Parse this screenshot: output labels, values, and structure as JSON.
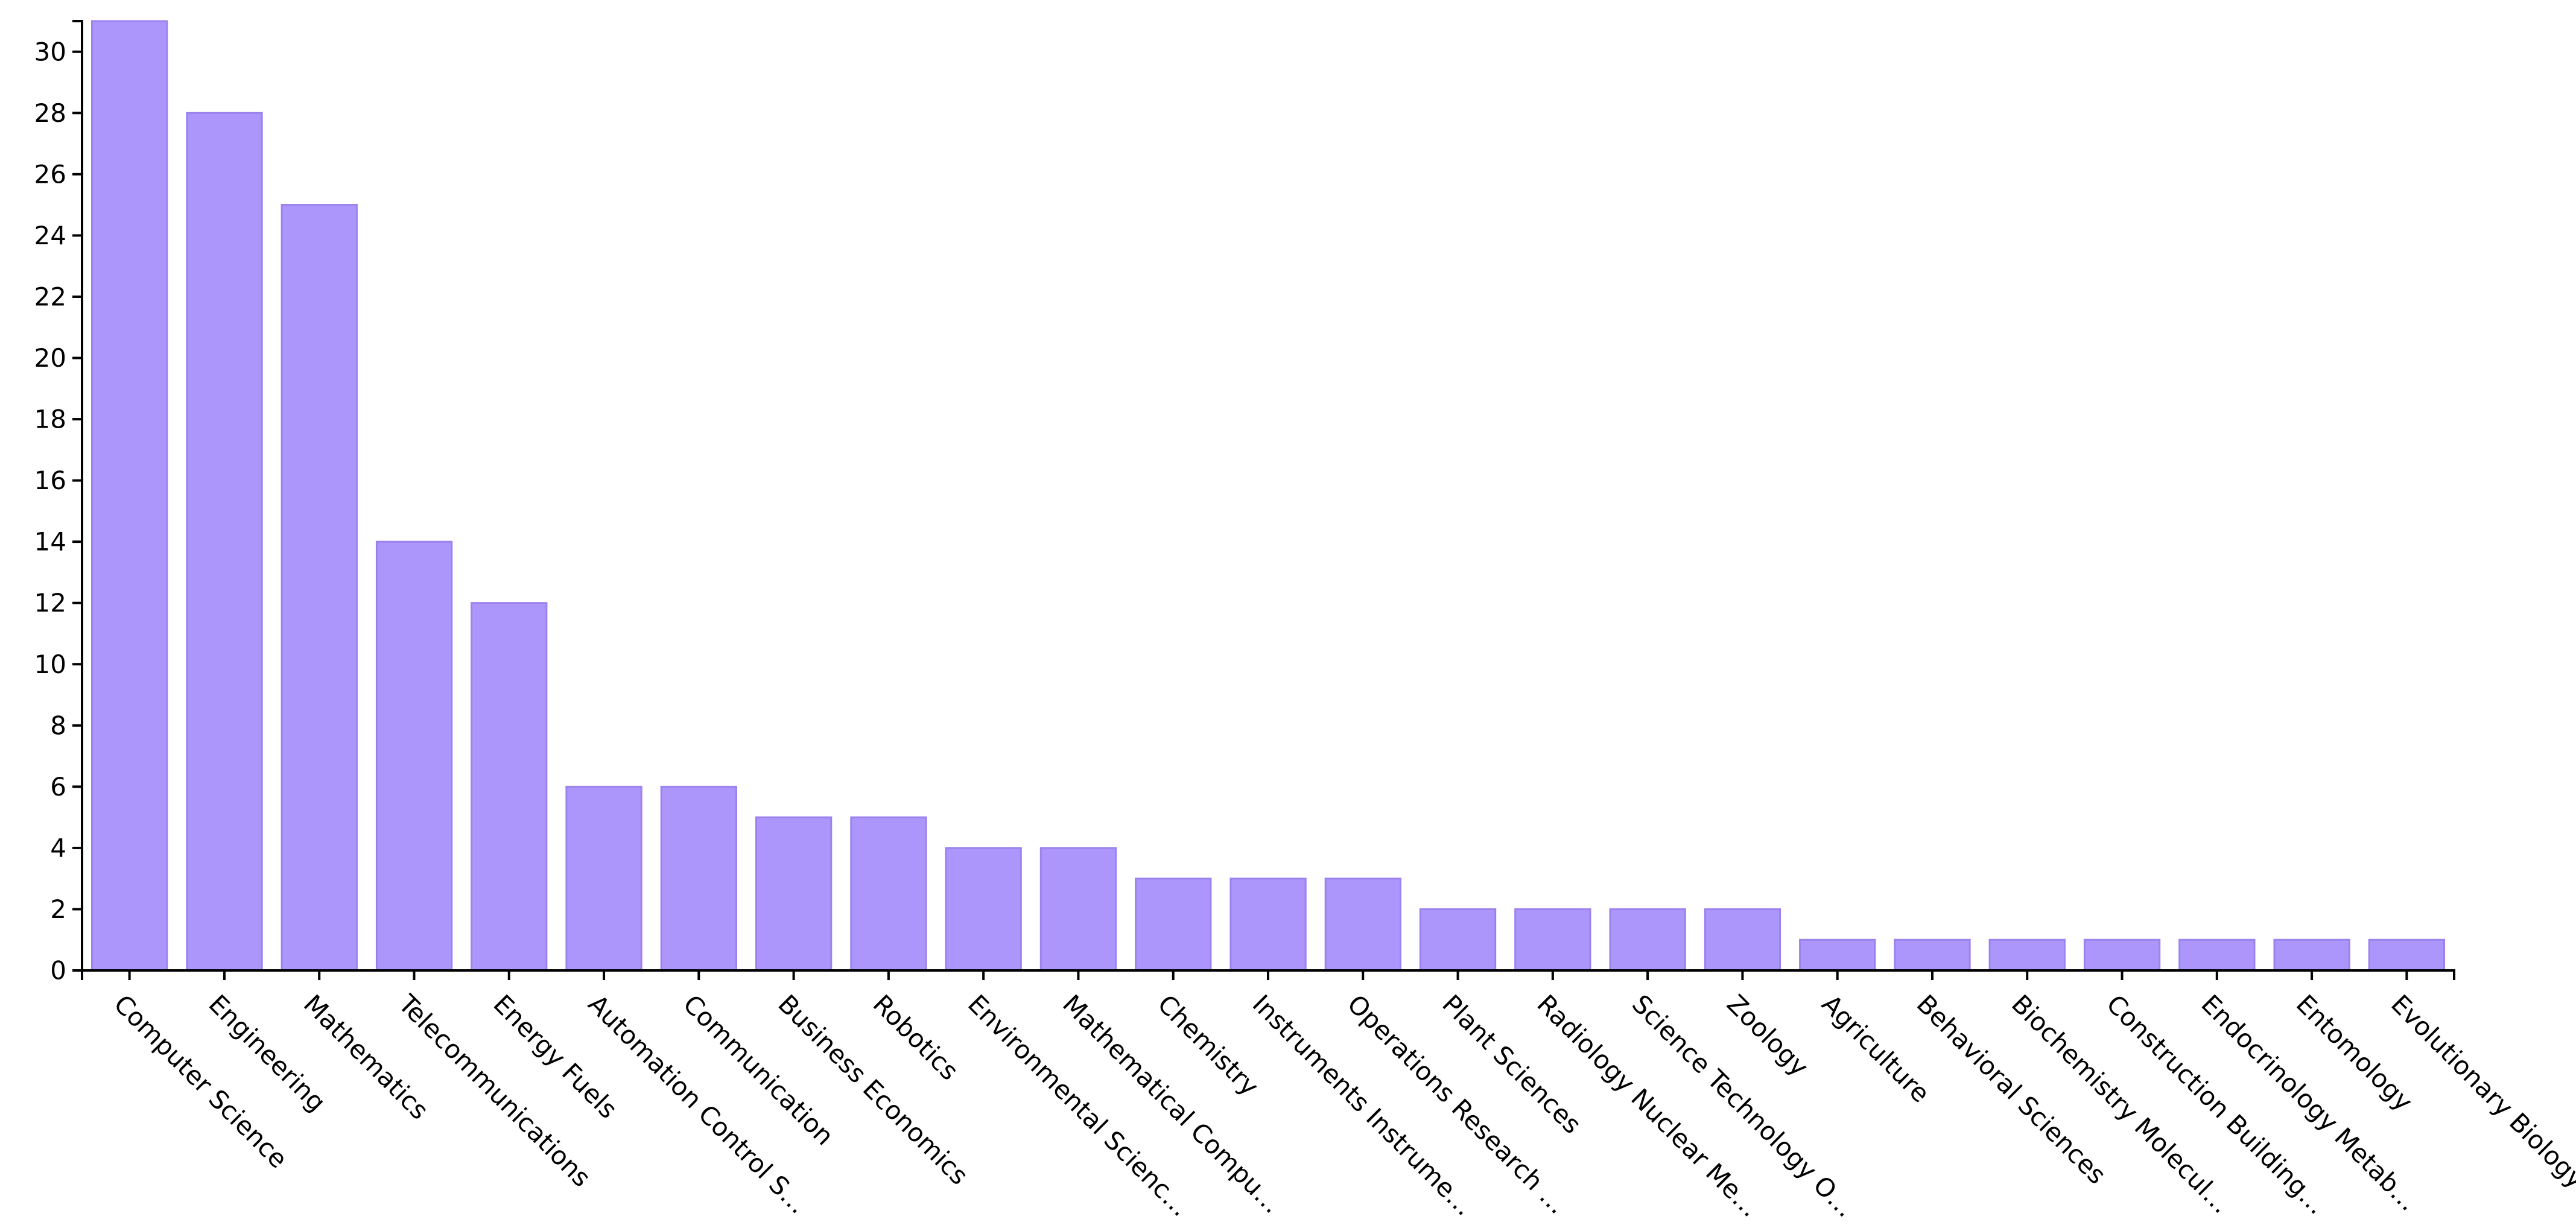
{
  "chart_data": {
    "type": "bar",
    "categories": [
      "Computer Science",
      "Engineering",
      "Mathematics",
      "Telecommunications",
      "Energy Fuels",
      "Automation Control S…",
      "Communication",
      "Business Economics",
      "Robotics",
      "Environmental Scienc…",
      "Mathematical Compu…",
      "Chemistry",
      "Instruments Instrume…",
      "Operations Research …",
      "Plant Sciences",
      "Radiology Nuclear Me…",
      "Science Technology O…",
      "Zoology",
      "Agriculture",
      "Behavioral Sciences",
      "Biochemistry Molecul…",
      "Construction Building…",
      "Endocrinology Metab…",
      "Entomology",
      "Evolutionary Biology"
    ],
    "values": [
      31,
      28,
      25,
      14,
      12,
      6,
      6,
      5,
      5,
      4,
      4,
      3,
      3,
      3,
      2,
      2,
      2,
      2,
      1,
      1,
      1,
      1,
      1,
      1,
      1
    ],
    "ylim": [
      0,
      31
    ],
    "yticks": [
      0,
      2,
      4,
      6,
      8,
      10,
      12,
      14,
      16,
      18,
      20,
      22,
      24,
      26,
      28,
      30
    ],
    "title": "",
    "xlabel": "",
    "ylabel": "",
    "grid": false,
    "colors": {
      "bar_fill": "#ad96fb",
      "bar_stroke": "#9b82ee",
      "axis": "#000000"
    }
  }
}
